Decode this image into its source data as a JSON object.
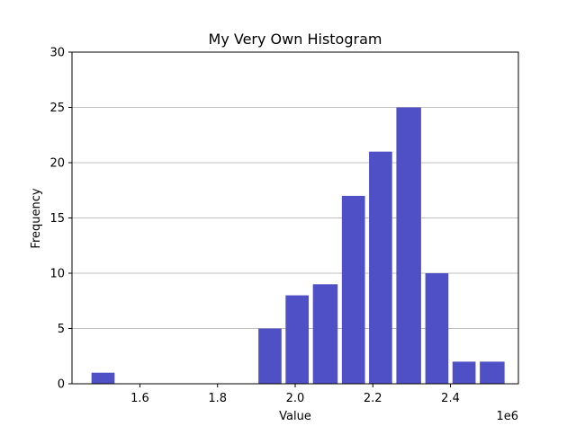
{
  "chart_data": {
    "type": "bar",
    "title": "My Very Own Histogram",
    "xlabel": "Value",
    "ylabel": "Frequency",
    "x_offset_label": "1e6",
    "x_unit_scale": 1000000,
    "xlim": [
      1425000,
      2575000
    ],
    "ylim": [
      0,
      30
    ],
    "x_ticks": [
      1600000,
      1800000,
      2000000,
      2200000,
      2400000
    ],
    "x_tick_labels": [
      "1.6",
      "1.8",
      "2.0",
      "2.2",
      "2.4"
    ],
    "y_ticks": [
      0,
      5,
      10,
      15,
      20,
      25,
      30
    ],
    "y_tick_labels": [
      "0",
      "5",
      "10",
      "15",
      "20",
      "25",
      "30"
    ],
    "grid": "y-axis",
    "bar_color": "#5050c6",
    "bins": [
      {
        "x0": 1470000,
        "x1": 1540000,
        "value": 1
      },
      {
        "x0": 1540000,
        "x1": 1610000,
        "value": 0
      },
      {
        "x0": 1610000,
        "x1": 1680000,
        "value": 0
      },
      {
        "x0": 1680000,
        "x1": 1755000,
        "value": 0
      },
      {
        "x0": 1755000,
        "x1": 1825000,
        "value": 0
      },
      {
        "x0": 1825000,
        "x1": 1900000,
        "value": 0
      },
      {
        "x0": 1900000,
        "x1": 1970000,
        "value": 5
      },
      {
        "x0": 1970000,
        "x1": 2040000,
        "value": 8
      },
      {
        "x0": 2040000,
        "x1": 2115000,
        "value": 9
      },
      {
        "x0": 2115000,
        "x1": 2185000,
        "value": 17
      },
      {
        "x0": 2185000,
        "x1": 2255000,
        "value": 21
      },
      {
        "x0": 2255000,
        "x1": 2330000,
        "value": 25
      },
      {
        "x0": 2330000,
        "x1": 2400000,
        "value": 10
      },
      {
        "x0": 2400000,
        "x1": 2470000,
        "value": 2
      },
      {
        "x0": 2470000,
        "x1": 2545000,
        "value": 2
      }
    ]
  }
}
